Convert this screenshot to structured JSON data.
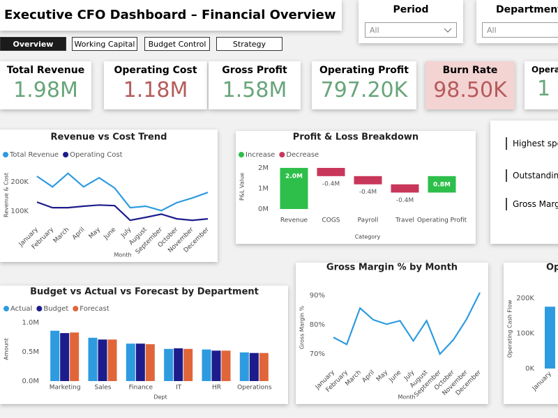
{
  "header": {
    "title": "Executive CFO Dashboard – Financial Overview"
  },
  "filters": [
    {
      "label": "Period",
      "value": "All"
    },
    {
      "label": "Department",
      "value": "All"
    }
  ],
  "tabs": [
    "Overview",
    "Working Capital",
    "Budget Control",
    "Strategy"
  ],
  "kpis": [
    {
      "label": "Total Revenue",
      "value": "1.98M"
    },
    {
      "label": "Operating Cost",
      "value": "1.18M"
    },
    {
      "label": "Gross Profit",
      "value": "1.58M"
    },
    {
      "label": "Operating Profit",
      "value": "797.20K"
    },
    {
      "label": "Burn Rate",
      "value": "98.50K"
    },
    {
      "label": "Operat",
      "value": "1"
    }
  ],
  "side_list": [
    "Highest spe",
    "Outstanding",
    "Gross Margi"
  ],
  "chart_data": [
    {
      "type": "line",
      "title": "Revenue vs Cost Trend",
      "y_label": "Revenue & Cost",
      "x_label": "Month",
      "categories": [
        "January",
        "February",
        "March",
        "April",
        "May",
        "June",
        "July",
        "August",
        "September",
        "October",
        "November",
        "December"
      ],
      "series": [
        {
          "name": "Total Revenue",
          "color": "#2e9be0",
          "values": [
            219000,
            183000,
            229000,
            183000,
            214000,
            179000,
            112000,
            117000,
            102000,
            129000,
            145000,
            164000
          ]
        },
        {
          "name": "Operating Cost",
          "color": "#1c1c8c",
          "values": [
            131000,
            112000,
            112000,
            117000,
            121000,
            119000,
            69000,
            79000,
            90000,
            74000,
            69000,
            74000
          ]
        }
      ],
      "ylim": [
        60000,
        250000
      ],
      "yticks": [
        {
          "value": 100000,
          "label": "100K"
        },
        {
          "value": 200000,
          "label": "200K"
        }
      ],
      "grid": false
    },
    {
      "type": "waterfall",
      "title": "Profit & Loss Breakdown",
      "y_label": "P&L Value",
      "x_label": "Category",
      "categories": [
        "Revenue",
        "COGS",
        "Payroll",
        "Travel",
        "Operating Profit"
      ],
      "values": [
        2000000,
        -400000,
        -400000,
        -400000,
        800000
      ],
      "value_labels": [
        "2.0M",
        "-0.4M",
        "-0.4M",
        "-0.4M",
        "0.8M"
      ],
      "legend": [
        {
          "name": "Increase",
          "color": "#2dbf4a"
        },
        {
          "name": "Decrease",
          "color": "#c8365a"
        }
      ],
      "ylim": [
        0,
        2170000
      ],
      "yticks": [
        {
          "value": 0,
          "label": "0M"
        },
        {
          "value": 1000000,
          "label": "1M"
        },
        {
          "value": 2000000,
          "label": "2M"
        }
      ],
      "grid": false
    },
    {
      "type": "bar",
      "title": "Budget vs Actual vs Forecast by Department",
      "y_label": "Amount",
      "x_label": "Dept",
      "categories": [
        "Marketing",
        "Sales",
        "Finance",
        "IT",
        "HR",
        "Operations"
      ],
      "series": [
        {
          "name": "Actual",
          "color": "#2e9be0",
          "values": [
            860000,
            740000,
            640000,
            550000,
            540000,
            490000
          ]
        },
        {
          "name": "Budget",
          "color": "#1c1c8c",
          "values": [
            820000,
            710000,
            640000,
            560000,
            520000,
            480000
          ]
        },
        {
          "name": "Forecast",
          "color": "#e0663a",
          "values": [
            830000,
            710000,
            630000,
            550000,
            520000,
            480000
          ]
        }
      ],
      "ylim": [
        0,
        1095000
      ],
      "yticks": [
        {
          "value": 0,
          "label": "0.0M"
        },
        {
          "value": 500000,
          "label": "0.5M"
        },
        {
          "value": 1000000,
          "label": "1.0M"
        }
      ],
      "grid": false
    },
    {
      "type": "line",
      "title": "Gross Margin % by Month",
      "y_label": "Gross Margin %",
      "x_label": "Month",
      "categories": [
        "January",
        "February",
        "March",
        "April",
        "May",
        "June",
        "July",
        "August",
        "September",
        "October",
        "November",
        "December"
      ],
      "series": [
        {
          "name": "Gross Margin %",
          "color": "#2e9be0",
          "values": [
            75.7,
            73.3,
            85.7,
            81.7,
            80.2,
            81.4,
            74.5,
            81.4,
            70.0,
            74.8,
            81.9,
            91.0
          ]
        }
      ],
      "ylim": [
        66,
        92.2
      ],
      "yticks": [
        {
          "value": 70,
          "label": "70%"
        },
        {
          "value": 80,
          "label": "80%"
        },
        {
          "value": 90,
          "label": "90%"
        }
      ],
      "grid": false
    },
    {
      "type": "bar",
      "title": "Op",
      "y_label": "Operating Cash Flow",
      "categories": [
        "January"
      ],
      "series": [
        {
          "name": "Operating Cash Flow",
          "color": "#2e9be0",
          "values": [
            176000
          ]
        }
      ],
      "ylim": [
        0,
        226000
      ],
      "yticks": [
        {
          "value": 0,
          "label": "0K"
        },
        {
          "value": 100000,
          "label": "100K"
        },
        {
          "value": 200000,
          "label": "200K"
        }
      ],
      "grid": false
    }
  ]
}
